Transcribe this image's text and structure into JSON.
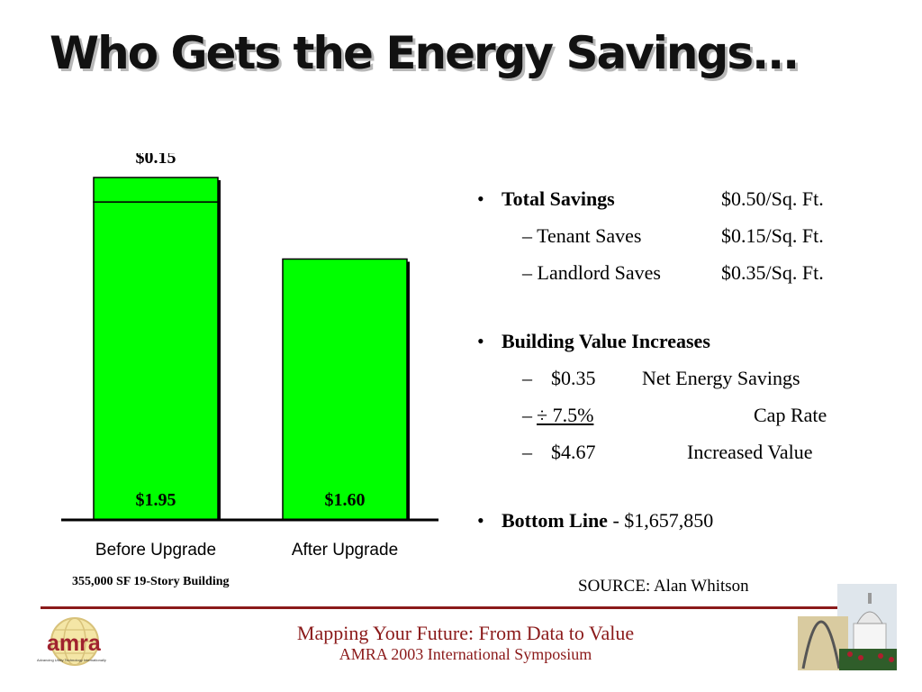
{
  "slide": {
    "title": "Who Gets the Energy Savings...",
    "source": "SOURCE: Alan Whitson",
    "building_note": "355,000 SF 19-Story Building"
  },
  "chart_data": {
    "type": "bar",
    "stacked": true,
    "categories": [
      "Before Upgrade",
      "After Upgrade"
    ],
    "series": [
      {
        "values": [
          1.95,
          1.6
        ],
        "labels": [
          "$1.95",
          "$1.60"
        ],
        "color": "#00ff00"
      },
      {
        "values": [
          0.15,
          0
        ],
        "labels": [
          "$0.15",
          ""
        ],
        "color": "#00ff00"
      }
    ],
    "ylim": [
      0,
      2.1
    ],
    "grid": false,
    "legend": "none",
    "title": "",
    "xlabel": "",
    "ylabel": ""
  },
  "bullets": {
    "total_savings": {
      "label": "Total Savings",
      "value": "$0.50/Sq. Ft."
    },
    "tenant": {
      "label": "– Tenant Saves",
      "value": "$0.15/Sq. Ft."
    },
    "landlord": {
      "label": "– Landlord Saves",
      "value": "$0.35/Sq. Ft."
    },
    "building_value": {
      "label": "Building Value Increases"
    },
    "net": {
      "dash": "–",
      "amount": "$0.35",
      "desc": "Net Energy Savings"
    },
    "cap": {
      "dash": "–",
      "amount": " ÷ 7.5%",
      "desc": "Cap Rate"
    },
    "increase": {
      "dash": "–",
      "amount": "$4.67",
      "desc": "Increased Value"
    },
    "bottom_line": {
      "label": "Bottom Line",
      "value": " - $1,657,850"
    },
    "bullet_char": "•"
  },
  "footer": {
    "line1": "Mapping Your Future: From Data to Value",
    "line2": "AMRA 2003 International Symposium",
    "logo_text": "amra",
    "logo_tagline": "Advancing Utility Technology Internationally"
  },
  "colors": {
    "bar": "#00ff00",
    "accent": "#8b1a1a",
    "logo": "#a0222e"
  }
}
